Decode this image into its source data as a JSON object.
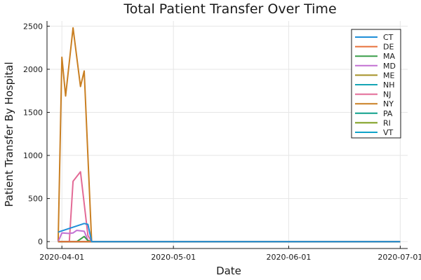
{
  "chart_data": {
    "type": "line",
    "title": "Total Patient Transfer Over Time",
    "xlabel": "Date",
    "ylabel": "Patient Transfer By Hospital",
    "xlim": [
      "2020-03-28",
      "2020-07-03"
    ],
    "ylim": [
      -80,
      2560
    ],
    "x_ticks": [
      "2020-04-01",
      "2020-05-01",
      "2020-06-01",
      "2020-07-01"
    ],
    "y_ticks": [
      0,
      500,
      1000,
      1500,
      2000,
      2500
    ],
    "grid": true,
    "legend_position": "top-right",
    "series": [
      {
        "name": "CT",
        "color": "#1f8fd8",
        "points": [
          [
            "2020-03-31",
            110
          ],
          [
            "2020-04-07",
            210
          ],
          [
            "2020-04-08",
            200
          ],
          [
            "2020-04-09",
            0
          ],
          [
            "2020-07-01",
            0
          ]
        ]
      },
      {
        "name": "DE",
        "color": "#e8703a",
        "points": [
          [
            "2020-03-31",
            0
          ],
          [
            "2020-07-01",
            0
          ]
        ]
      },
      {
        "name": "MA",
        "color": "#3a9e4a",
        "points": [
          [
            "2020-03-31",
            0
          ],
          [
            "2020-04-05",
            0
          ],
          [
            "2020-04-07",
            60
          ],
          [
            "2020-04-08",
            10
          ],
          [
            "2020-04-09",
            0
          ],
          [
            "2020-07-01",
            0
          ]
        ]
      },
      {
        "name": "MD",
        "color": "#c271d2",
        "points": [
          [
            "2020-03-31",
            0
          ],
          [
            "2020-04-01",
            100
          ],
          [
            "2020-04-03",
            95
          ],
          [
            "2020-04-04",
            100
          ],
          [
            "2020-04-05",
            130
          ],
          [
            "2020-04-06",
            125
          ],
          [
            "2020-04-07",
            120
          ],
          [
            "2020-04-08",
            15
          ],
          [
            "2020-04-09",
            0
          ],
          [
            "2020-07-01",
            0
          ]
        ]
      },
      {
        "name": "ME",
        "color": "#a59026",
        "points": [
          [
            "2020-03-31",
            0
          ],
          [
            "2020-07-01",
            0
          ]
        ]
      },
      {
        "name": "NH",
        "color": "#15a5b5",
        "points": [
          [
            "2020-03-31",
            0
          ],
          [
            "2020-07-01",
            0
          ]
        ]
      },
      {
        "name": "NJ",
        "color": "#e36a96",
        "points": [
          [
            "2020-03-31",
            0
          ],
          [
            "2020-04-03",
            0
          ],
          [
            "2020-04-04",
            700
          ],
          [
            "2020-04-06",
            810
          ],
          [
            "2020-04-08",
            70
          ],
          [
            "2020-04-09",
            0
          ],
          [
            "2020-07-01",
            0
          ]
        ]
      },
      {
        "name": "NY",
        "color": "#c97f22",
        "points": [
          [
            "2020-03-31",
            0
          ],
          [
            "2020-04-01",
            2140
          ],
          [
            "2020-04-02",
            1690
          ],
          [
            "2020-04-04",
            2480
          ],
          [
            "2020-04-06",
            1800
          ],
          [
            "2020-04-07",
            1980
          ],
          [
            "2020-04-09",
            0
          ],
          [
            "2020-07-01",
            0
          ]
        ]
      },
      {
        "name": "PA",
        "color": "#0e9f8a",
        "points": [
          [
            "2020-03-31",
            0
          ],
          [
            "2020-07-01",
            0
          ]
        ]
      },
      {
        "name": "RI",
        "color": "#7c9d1c",
        "points": [
          [
            "2020-03-31",
            0
          ],
          [
            "2020-07-01",
            0
          ]
        ]
      },
      {
        "name": "VT",
        "color": "#0fa3c8",
        "points": [
          [
            "2020-03-31",
            0
          ],
          [
            "2020-07-01",
            0
          ]
        ]
      }
    ]
  }
}
